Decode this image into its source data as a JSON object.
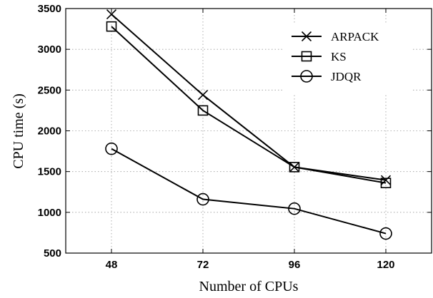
{
  "chart_data": {
    "type": "line",
    "x": [
      48,
      72,
      96,
      120
    ],
    "tick_labels_x": [
      "48",
      "72",
      "96",
      "120"
    ],
    "tick_labels_y": [
      "500",
      "1000",
      "1500",
      "2000",
      "2500",
      "3000",
      "3500"
    ],
    "y_ticks": [
      500,
      1000,
      1500,
      2000,
      2500,
      3000,
      3500
    ],
    "xlabel": "Number of CPUs",
    "ylabel": "CPU time (s)",
    "xlim": [
      36,
      132
    ],
    "ylim": [
      500,
      3500
    ],
    "grid": true,
    "legend_position": "top-right",
    "series": [
      {
        "name": "ARPACK",
        "marker": "x",
        "values": [
          3430,
          2440,
          1555,
          1395
        ]
      },
      {
        "name": "KS",
        "marker": "square",
        "values": [
          3280,
          2250,
          1555,
          1360
        ]
      },
      {
        "name": "JDQR",
        "marker": "circle",
        "values": [
          1780,
          1160,
          1045,
          740
        ]
      }
    ]
  }
}
